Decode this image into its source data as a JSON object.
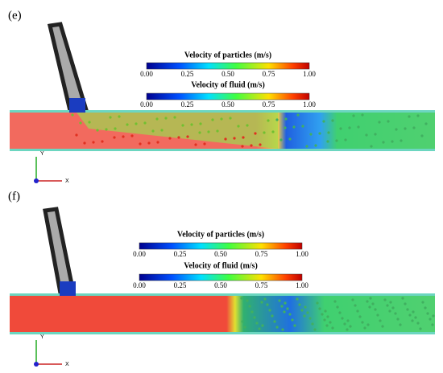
{
  "panels": [
    {
      "label": "(e)",
      "colorbars": [
        {
          "title": "Velocity of particles  (m/s)",
          "ticks": [
            "0.00",
            "0.25",
            "0.50",
            "0.75",
            "1.00"
          ]
        },
        {
          "title": "Velocity of fluid  (m/s)",
          "ticks": [
            "0.00",
            "0.25",
            "0.50",
            "0.75",
            "1.00"
          ]
        }
      ],
      "axes": {
        "y": "Y",
        "x": "X"
      }
    },
    {
      "label": "(f)",
      "colorbars": [
        {
          "title": "Velocity of particles  (m/s)",
          "ticks": [
            "0.00",
            "0.25",
            "0.50",
            "0.75",
            "1.00"
          ]
        },
        {
          "title": "Velocity of fluid  (m/s)",
          "ticks": [
            "0.00",
            "0.25",
            "0.50",
            "0.75",
            "1.00"
          ]
        }
      ],
      "axes": {
        "y": "Y",
        "x": "X"
      }
    }
  ]
}
